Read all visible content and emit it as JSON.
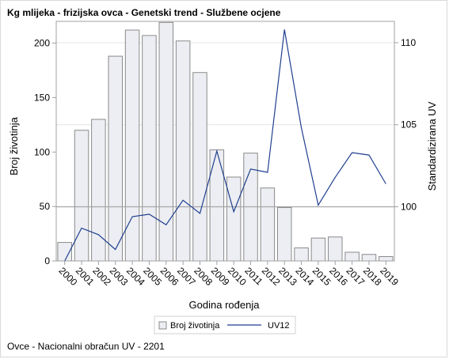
{
  "title": "Kg mlijeka - frizijska ovca - Genetski trend - Službene ocjene",
  "footnote": "Ovce - Nacionalni obračun UV - 2201",
  "colors": {
    "bar_fill": "#eceef3",
    "bar_stroke": "#8a8a8a",
    "line": "#1f3f8f",
    "grid": "#e4e4e4",
    "refline": "#a6a6a6",
    "axis": "#a0a0a0"
  },
  "chart_data": {
    "type": "bar",
    "title": "Kg mlijeka - frizijska ovca - Genetski trend - Službene ocjene",
    "xlabel": "Godina rođenja",
    "ylabel": "Broj životinja",
    "y2label": "Standardizirana UV",
    "categories": [
      "2000",
      "2001",
      "2002",
      "2003",
      "2004",
      "2005",
      "2006",
      "2007",
      "2008",
      "2009",
      "2010",
      "2011",
      "2012",
      "2013",
      "2014",
      "2015",
      "2016",
      "2017",
      "2018",
      "2019"
    ],
    "ylim": [
      0,
      220
    ],
    "yticks": [
      0,
      50,
      100,
      150,
      200
    ],
    "y2lim": [
      96.7,
      111.3
    ],
    "y2ticks": [
      100,
      105,
      110
    ],
    "grid": true,
    "legend_position": "bottom-center",
    "series": [
      {
        "name": "Broj životinja",
        "type": "bar",
        "axis": "left",
        "values": [
          17,
          120,
          130,
          188,
          212,
          207,
          219,
          202,
          173,
          102,
          77,
          99,
          67,
          49,
          12,
          21,
          22,
          8,
          6,
          4
        ]
      },
      {
        "name": "UV12",
        "type": "line",
        "axis": "right",
        "values": [
          96.7,
          98.7,
          98.3,
          97.4,
          99.4,
          99.55,
          98.9,
          100.4,
          99.6,
          103.4,
          99.7,
          102.3,
          102.1,
          110.8,
          104.8,
          100.1,
          101.8,
          103.3,
          103.15,
          101.4
        ]
      }
    ],
    "reference_line": {
      "axis": "right",
      "value": 100
    }
  }
}
